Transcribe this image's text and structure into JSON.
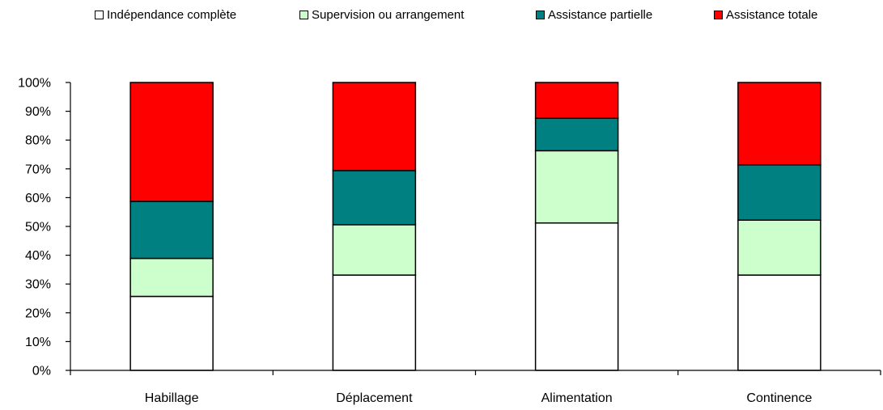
{
  "chart_data": {
    "type": "bar",
    "stacked": true,
    "categories": [
      "Habillage",
      "Déplacement",
      "Alimentation",
      "Continence"
    ],
    "series": [
      {
        "name": "Indépendance complète",
        "color": "#ffffff",
        "values": [
          25.7,
          33.1,
          51.2,
          33.1
        ]
      },
      {
        "name": "Supervision ou arrangement",
        "color": "#ccffcc",
        "values": [
          13.2,
          17.5,
          25.1,
          19.1
        ]
      },
      {
        "name": "Assistance partielle",
        "color": "#008080",
        "values": [
          19.8,
          18.8,
          11.3,
          19.2
        ]
      },
      {
        "name": "Assistance totale",
        "color": "#ff0000",
        "values": [
          41.3,
          30.6,
          12.4,
          28.6
        ]
      }
    ],
    "y_ticks": [
      "0%",
      "10%",
      "20%",
      "30%",
      "40%",
      "50%",
      "60%",
      "70%",
      "80%",
      "90%",
      "100%"
    ],
    "ylim": [
      0,
      100
    ],
    "title": "",
    "xlabel": "",
    "ylabel": "",
    "grid": false,
    "legend_position": "top"
  }
}
